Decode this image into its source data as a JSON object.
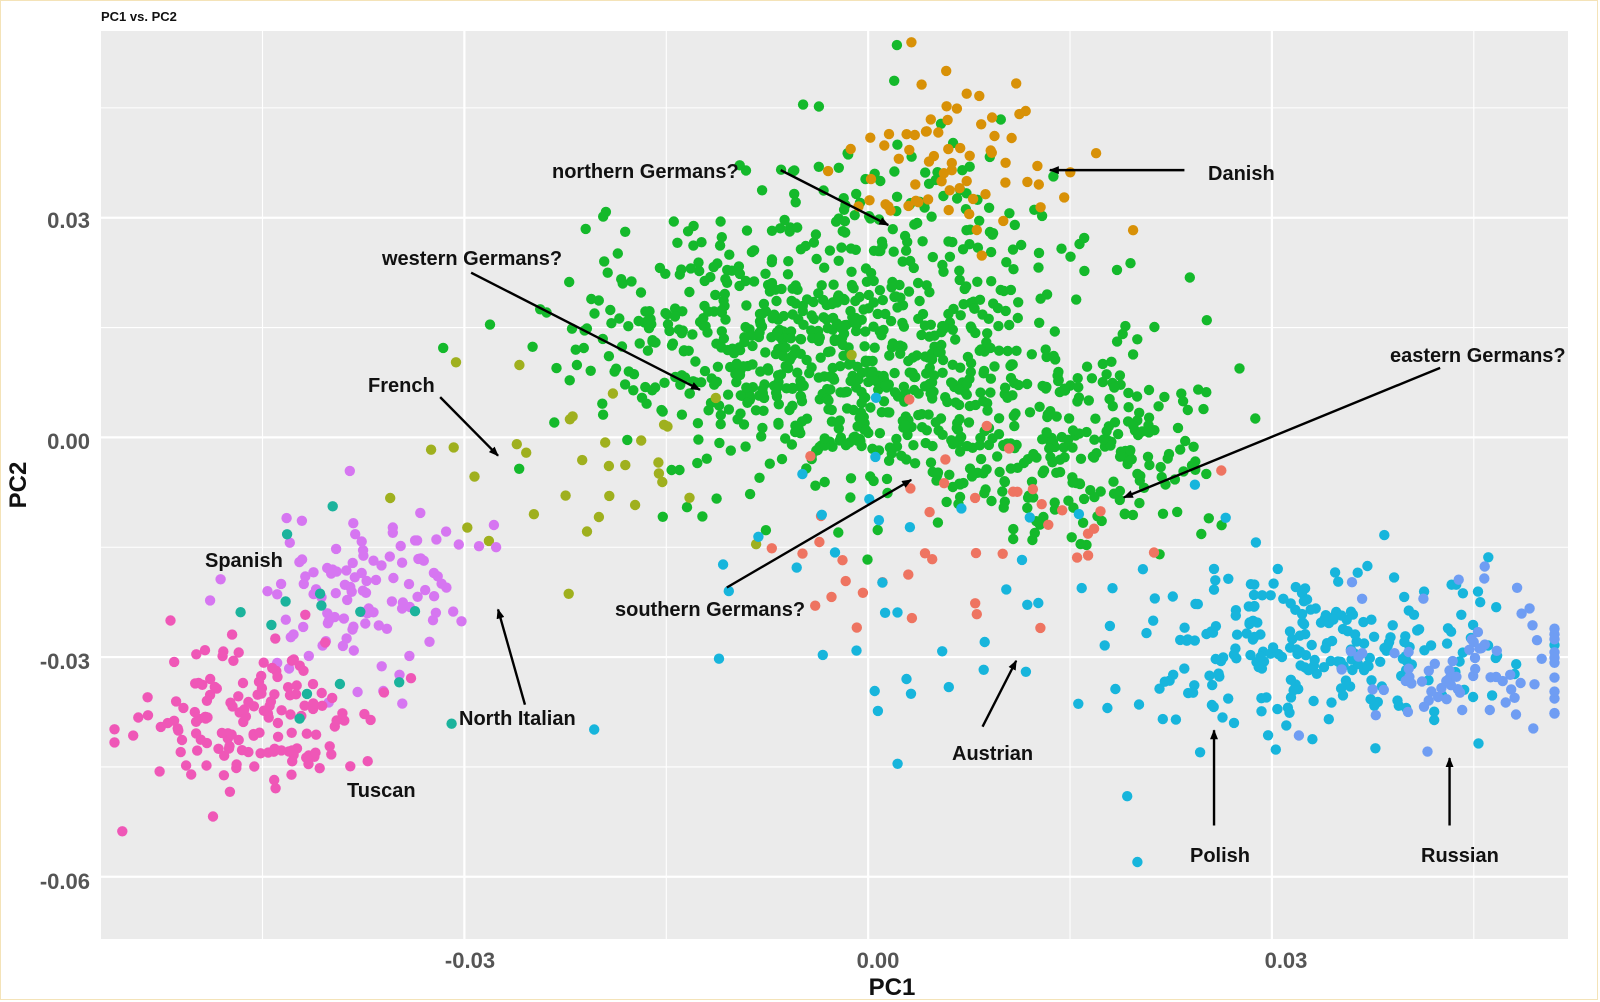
{
  "chart_data": {
    "type": "scatter",
    "title": "PC1 vs. PC2",
    "xlabel": "PC1",
    "ylabel": "PC2",
    "xlim": [
      -0.057,
      0.052
    ],
    "ylim": [
      -0.0685,
      0.0555
    ],
    "grid": true,
    "legend": "none",
    "x_ticks": [
      {
        "value": -0.03,
        "label": "-0.03"
      },
      {
        "value": 0.0,
        "label": "0.00"
      },
      {
        "value": 0.03,
        "label": "0.03"
      }
    ],
    "y_ticks": [
      {
        "value": 0.03,
        "label": "0.03"
      },
      {
        "value": 0.0,
        "label": "0.00"
      },
      {
        "value": -0.03,
        "label": "-0.03"
      },
      {
        "value": -0.06,
        "label": "-0.06"
      }
    ],
    "series": [
      {
        "name": "German",
        "color": "#14b92b",
        "clusters": [
          {
            "cx": -0.0055,
            "cy": 0.0135,
            "sx": 0.0085,
            "sy": 0.0085,
            "n": 520
          },
          {
            "cx": 0.0065,
            "cy": 0.0045,
            "sx": 0.0085,
            "sy": 0.0075,
            "n": 300
          },
          {
            "cx": 0.0165,
            "cy": -0.0035,
            "sx": 0.005,
            "sy": 0.006,
            "n": 130
          },
          {
            "cx": 0.0035,
            "cy": 0.029,
            "sx": 0.0055,
            "sy": 0.0075,
            "n": 110
          }
        ]
      },
      {
        "name": "Danish",
        "color": "#d89107",
        "clusters": [
          {
            "cx": 0.0075,
            "cy": 0.0375,
            "sx": 0.0042,
            "sy": 0.0062,
            "n": 70
          }
        ]
      },
      {
        "name": "French",
        "color": "#9fb01e",
        "clusters": [
          {
            "cx": -0.0205,
            "cy": -0.0035,
            "sx": 0.0065,
            "sy": 0.0065,
            "n": 34
          }
        ]
      },
      {
        "name": "Spanish",
        "color": "#d676f1",
        "clusters": [
          {
            "cx": -0.0375,
            "cy": -0.0205,
            "sx": 0.0038,
            "sy": 0.0065,
            "n": 110
          }
        ]
      },
      {
        "name": "Tuscan",
        "color": "#ef57b7",
        "clusters": [
          {
            "cx": -0.0455,
            "cy": -0.0385,
            "sx": 0.0038,
            "sy": 0.0052,
            "n": 150
          }
        ]
      },
      {
        "name": "North Italian",
        "color": "#1bb39c",
        "clusters": [
          {
            "cx": -0.0395,
            "cy": -0.0275,
            "sx": 0.0045,
            "sy": 0.008,
            "n": 14
          }
        ]
      },
      {
        "name": "Austrian",
        "color": "#ee7461",
        "clusters": [
          {
            "cx": 0.0065,
            "cy": -0.0135,
            "sx": 0.0072,
            "sy": 0.0085,
            "n": 42
          }
        ]
      },
      {
        "name": "Polish",
        "color": "#17b5dc",
        "clusters": [
          {
            "cx": 0.0335,
            "cy": -0.0285,
            "sx": 0.0068,
            "sy": 0.0055,
            "n": 240
          },
          {
            "cx": 0.0065,
            "cy": -0.024,
            "sx": 0.0125,
            "sy": 0.0135,
            "n": 45
          }
        ]
      },
      {
        "name": "Russian",
        "color": "#6f9df3",
        "clusters": [
          {
            "cx": 0.0445,
            "cy": -0.0315,
            "sx": 0.0048,
            "sy": 0.0052,
            "n": 80
          }
        ]
      }
    ],
    "annotations": [
      {
        "text": "northern Germans?",
        "from": [
          -0.0065,
          0.0365
        ],
        "to": [
          0.0015,
          0.029
        ]
      },
      {
        "text": "Danish",
        "from": [
          0.0235,
          0.0365
        ],
        "to": [
          0.0135,
          0.0365
        ]
      },
      {
        "text": "western Germans?",
        "from": [
          -0.0295,
          0.0225
        ],
        "to": [
          -0.0125,
          0.0065
        ]
      },
      {
        "text": "French",
        "from": [
          -0.0318,
          0.0055
        ],
        "to": [
          -0.0275,
          -0.0025
        ]
      },
      {
        "text": "eastern Germans?",
        "from": [
          0.0425,
          0.0095
        ],
        "to": [
          0.019,
          -0.0082
        ]
      },
      {
        "text": "southern Germans?",
        "from": [
          -0.0105,
          -0.0205
        ],
        "to": [
          0.0032,
          -0.0058
        ]
      },
      {
        "text": "Spanish",
        "from": null,
        "to": null
      },
      {
        "text": "North Italian",
        "from": [
          -0.0255,
          -0.0365
        ],
        "to": [
          -0.0275,
          -0.0235
        ]
      },
      {
        "text": "Austrian",
        "from": [
          0.0085,
          -0.0395
        ],
        "to": [
          0.011,
          -0.0305
        ]
      },
      {
        "text": "Tuscan",
        "from": null,
        "to": null
      },
      {
        "text": "Polish",
        "from": [
          0.0257,
          -0.053
        ],
        "to": [
          0.0257,
          -0.04
        ]
      },
      {
        "text": "Russian",
        "from": [
          0.0432,
          -0.053
        ],
        "to": [
          0.0432,
          -0.0438
        ]
      }
    ]
  }
}
